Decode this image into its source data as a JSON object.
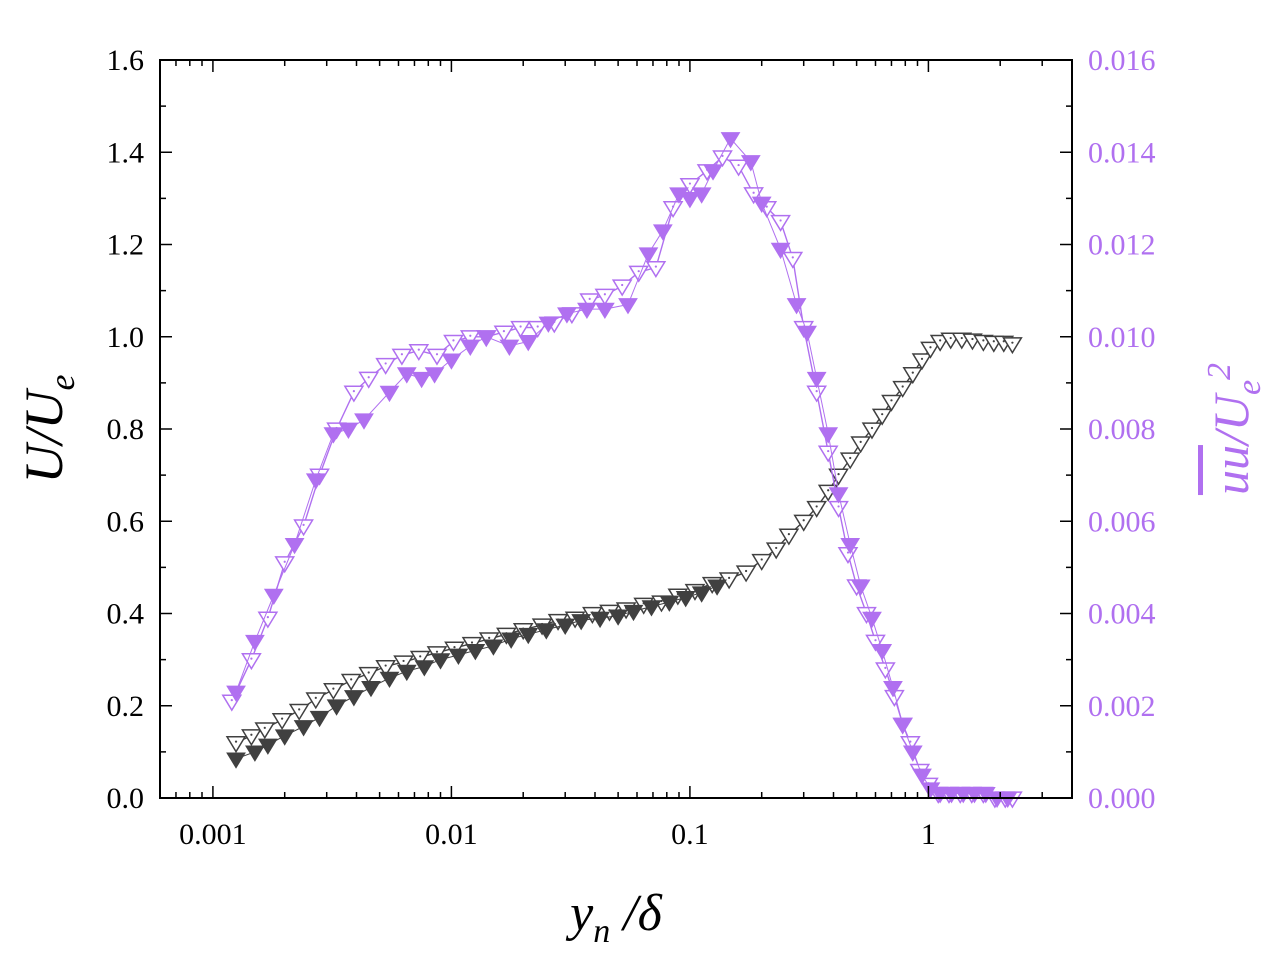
{
  "chart_data": {
    "type": "scatter",
    "title": "",
    "xscale": "log",
    "xlim": [
      0.0006,
      4
    ],
    "xticks": [
      {
        "value": 0.001,
        "label": "0.001"
      },
      {
        "value": 0.01,
        "label": "0.01"
      },
      {
        "value": 0.1,
        "label": "0.1"
      },
      {
        "value": 1,
        "label": "1"
      }
    ],
    "xlabel": {
      "main": "y",
      "sub": "n",
      "rest": " /δ"
    },
    "ylim_left": [
      0,
      1.6
    ],
    "yticks_left": [
      "0.0",
      "0.2",
      "0.4",
      "0.6",
      "0.8",
      "1.0",
      "1.2",
      "1.4",
      "1.6"
    ],
    "ylabel_left": {
      "main": "U/U",
      "sub": "e"
    },
    "ylim_right": [
      0,
      0.016
    ],
    "yticks_right": [
      "0.000",
      "0.002",
      "0.004",
      "0.006",
      "0.008",
      "0.010",
      "0.012",
      "0.014",
      "0.016"
    ],
    "ylabel_right": {
      "main": "uu",
      "rest": "/U",
      "sub": "e",
      "sup": "2"
    },
    "colors": {
      "mean": "#404040",
      "stress": "#b070f0",
      "axis": "#000000"
    },
    "series": [
      {
        "name": "U/Ue (open markers)",
        "axis": "left",
        "marker": "open-down-triangle",
        "color": "#404040",
        "x": [
          0.00125,
          0.00145,
          0.00165,
          0.00195,
          0.0023,
          0.0027,
          0.0032,
          0.0038,
          0.0045,
          0.0053,
          0.0063,
          0.0074,
          0.0087,
          0.0103,
          0.0122,
          0.0144,
          0.017,
          0.02,
          0.024,
          0.028,
          0.033,
          0.039,
          0.046,
          0.054,
          0.064,
          0.076,
          0.089,
          0.105,
          0.124,
          0.146,
          0.172,
          0.2,
          0.23,
          0.26,
          0.3,
          0.34,
          0.38,
          0.42,
          0.47,
          0.52,
          0.58,
          0.64,
          0.7,
          0.78,
          0.86,
          0.94,
          1.02,
          1.12,
          1.24,
          1.38,
          1.53,
          1.7,
          1.88,
          2.07,
          2.25
        ],
        "y": [
          0.12,
          0.135,
          0.15,
          0.17,
          0.19,
          0.215,
          0.235,
          0.255,
          0.27,
          0.285,
          0.295,
          0.305,
          0.315,
          0.325,
          0.335,
          0.345,
          0.355,
          0.365,
          0.375,
          0.385,
          0.39,
          0.4,
          0.405,
          0.41,
          0.42,
          0.425,
          0.44,
          0.45,
          0.465,
          0.475,
          0.49,
          0.515,
          0.54,
          0.57,
          0.6,
          0.63,
          0.665,
          0.7,
          0.735,
          0.77,
          0.8,
          0.83,
          0.86,
          0.89,
          0.92,
          0.95,
          0.975,
          0.99,
          0.995,
          0.995,
          0.993,
          0.99,
          0.988,
          0.988,
          0.985
        ]
      },
      {
        "name": "U/Ue (filled markers)",
        "axis": "left",
        "marker": "filled-down-triangle",
        "color": "#404040",
        "x": [
          0.00125,
          0.0015,
          0.0017,
          0.002,
          0.0024,
          0.0028,
          0.0033,
          0.0039,
          0.0046,
          0.0055,
          0.0065,
          0.0077,
          0.009,
          0.0107,
          0.0126,
          0.015,
          0.0178,
          0.021,
          0.025,
          0.03,
          0.035,
          0.042,
          0.05,
          0.058,
          0.069,
          0.082,
          0.096,
          0.112,
          0.13
        ],
        "y": [
          0.085,
          0.1,
          0.115,
          0.135,
          0.155,
          0.175,
          0.2,
          0.22,
          0.24,
          0.26,
          0.275,
          0.285,
          0.3,
          0.31,
          0.32,
          0.33,
          0.345,
          0.355,
          0.365,
          0.375,
          0.385,
          0.39,
          0.395,
          0.405,
          0.415,
          0.425,
          0.435,
          0.445,
          0.46
        ]
      },
      {
        "name": "uu/Ue^2 (open markers)",
        "axis": "right",
        "marker": "open-down-triangle",
        "color": "#b070f0",
        "x": [
          0.0012,
          0.00145,
          0.0017,
          0.002,
          0.0024,
          0.0028,
          0.0033,
          0.0039,
          0.0045,
          0.0053,
          0.0062,
          0.0073,
          0.0087,
          0.0102,
          0.012,
          0.014,
          0.0166,
          0.0195,
          0.023,
          0.027,
          0.032,
          0.038,
          0.044,
          0.052,
          0.061,
          0.072,
          0.085,
          0.1,
          0.118,
          0.137,
          0.16,
          0.185,
          0.21,
          0.24,
          0.27,
          0.3,
          0.34,
          0.38,
          0.42,
          0.46,
          0.5,
          0.55,
          0.6,
          0.66,
          0.72,
          0.78,
          0.84,
          0.92,
          1.0,
          1.1,
          1.22,
          1.36,
          1.52,
          1.7,
          1.9,
          2.1,
          2.25
        ],
        "y": [
          0.0021,
          0.003,
          0.0039,
          0.0051,
          0.0059,
          0.007,
          0.008,
          0.0088,
          0.0091,
          0.0094,
          0.0096,
          0.0097,
          0.0096,
          0.0099,
          0.01,
          0.01,
          0.0101,
          0.0102,
          0.0102,
          0.0103,
          0.0105,
          0.0108,
          0.0109,
          0.0111,
          0.0114,
          0.0115,
          0.0128,
          0.0133,
          0.0136,
          0.0139,
          0.0137,
          0.0131,
          0.0128,
          0.0125,
          0.0117,
          0.0102,
          0.0088,
          0.0075,
          0.0063,
          0.0053,
          0.0046,
          0.004,
          0.0034,
          0.0028,
          0.0022,
          0.0016,
          0.0012,
          0.0006,
          0.0003,
          0.0001,
          0.0001,
          0.0001,
          0.0001,
          0.0001,
          0.0,
          0.0,
          0.0
        ]
      },
      {
        "name": "uu/Ue^2 (filled markers)",
        "axis": "right",
        "marker": "filled-down-triangle",
        "color": "#b070f0",
        "x": [
          0.00125,
          0.0015,
          0.0018,
          0.0022,
          0.0027,
          0.0032,
          0.0037,
          0.0043,
          0.0055,
          0.0065,
          0.0075,
          0.0085,
          0.01,
          0.012,
          0.014,
          0.0175,
          0.021,
          0.0255,
          0.0305,
          0.037,
          0.044,
          0.055,
          0.067,
          0.077,
          0.09,
          0.1,
          0.112,
          0.125,
          0.148,
          0.18,
          0.2,
          0.24,
          0.28,
          0.31,
          0.34,
          0.38,
          0.42,
          0.47,
          0.52,
          0.58,
          0.64,
          0.71,
          0.78,
          0.86,
          0.94,
          1.02,
          1.12,
          1.25,
          1.4,
          1.56,
          1.74,
          1.94,
          2.15
        ],
        "y": [
          0.0023,
          0.0034,
          0.0044,
          0.0055,
          0.0069,
          0.0079,
          0.008,
          0.0082,
          0.0088,
          0.0092,
          0.0091,
          0.0092,
          0.0095,
          0.0098,
          0.01,
          0.0098,
          0.0099,
          0.0103,
          0.0105,
          0.0106,
          0.0106,
          0.0107,
          0.0118,
          0.0123,
          0.0131,
          0.013,
          0.0131,
          0.0136,
          0.0143,
          0.0138,
          0.0129,
          0.0119,
          0.0107,
          0.0101,
          0.0091,
          0.0079,
          0.0066,
          0.0055,
          0.0046,
          0.0039,
          0.0032,
          0.0024,
          0.0016,
          0.001,
          0.0005,
          0.0002,
          0.0001,
          0.0001,
          0.0001,
          0.0001,
          0.0001,
          0.0,
          0.0
        ]
      }
    ]
  }
}
